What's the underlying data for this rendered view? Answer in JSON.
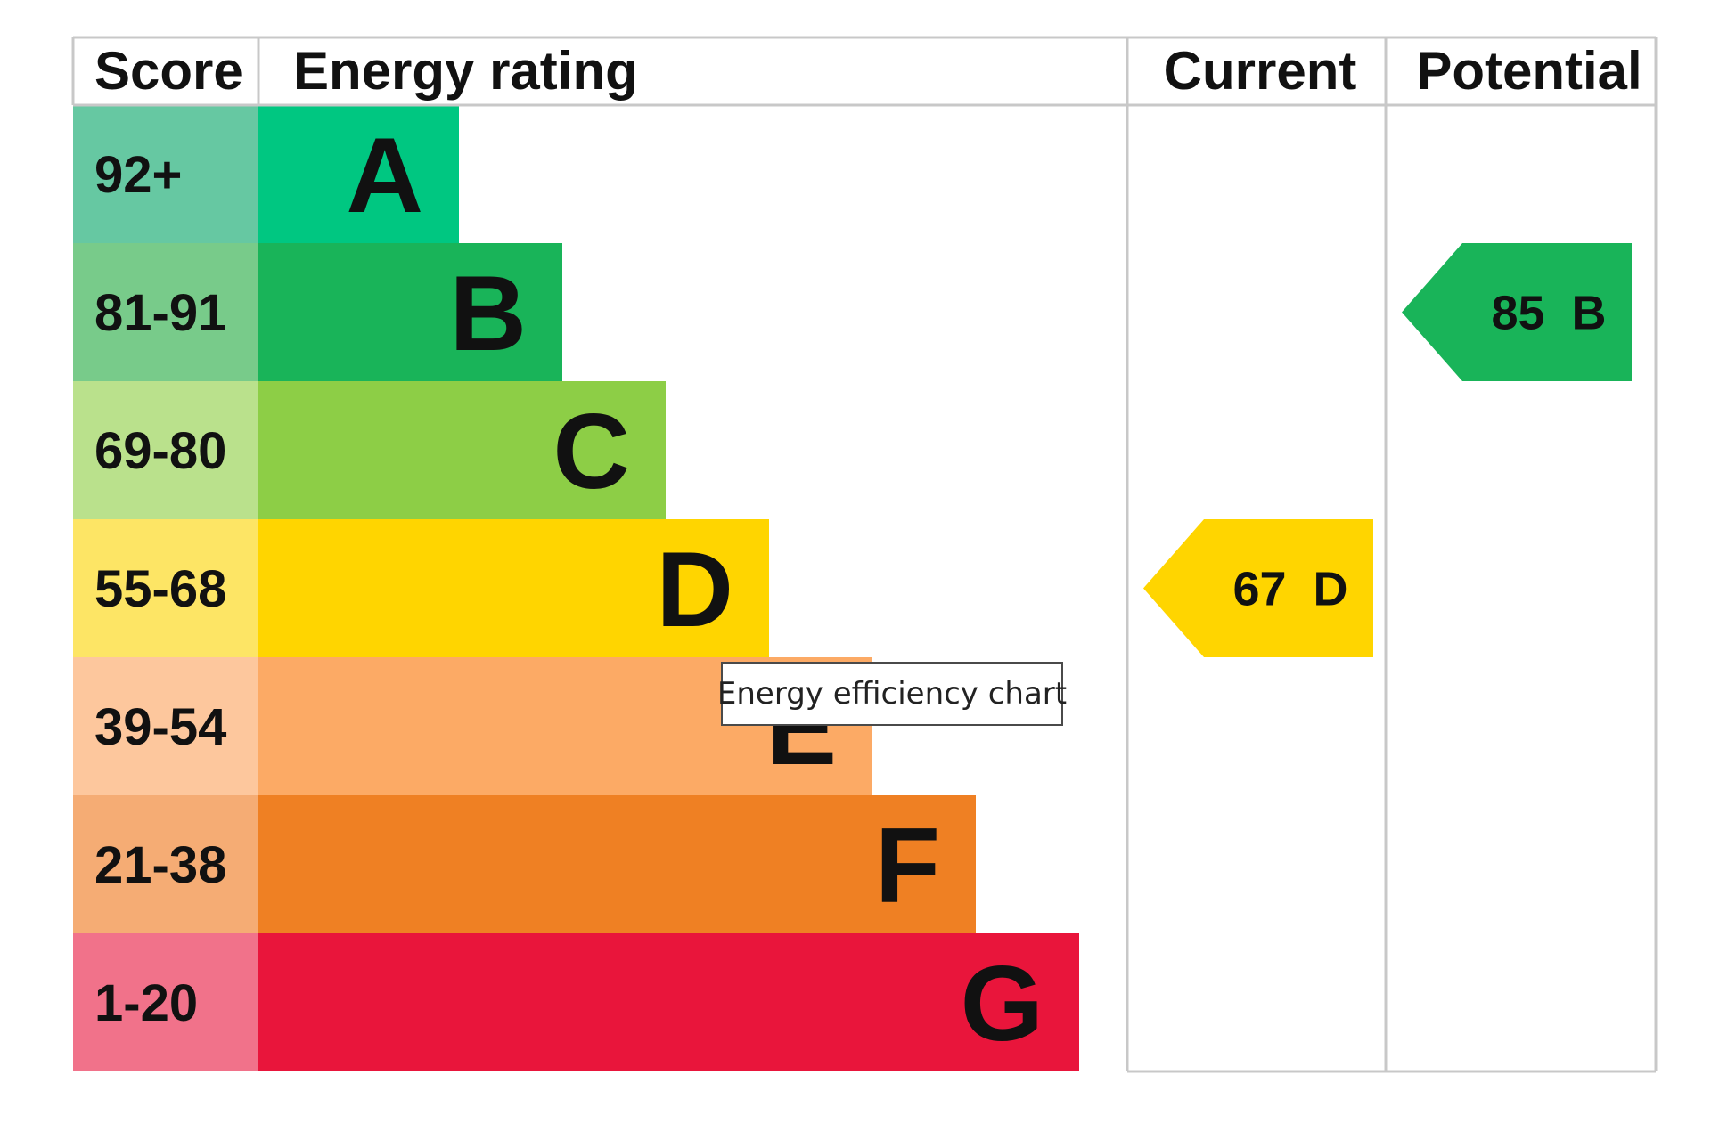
{
  "chart_data": {
    "type": "bar",
    "headers": {
      "score": "Score",
      "energy_rating": "Energy rating",
      "current": "Current",
      "potential": "Potential"
    },
    "bands": [
      {
        "letter": "A",
        "range": "92+",
        "color": "#00c781",
        "score_bg": "#66c8a2"
      },
      {
        "letter": "B",
        "range": "81-91",
        "color": "#19b459",
        "score_bg": "#78cb8a"
      },
      {
        "letter": "C",
        "range": "69-80",
        "color": "#8dce46",
        "score_bg": "#bae18c"
      },
      {
        "letter": "D",
        "range": "55-68",
        "color": "#ffd500",
        "score_bg": "#fde565"
      },
      {
        "letter": "E",
        "range": "39-54",
        "color": "#fcaa65",
        "score_bg": "#fdc79d"
      },
      {
        "letter": "F",
        "range": "21-38",
        "color": "#ef8023",
        "score_bg": "#f5ac74"
      },
      {
        "letter": "G",
        "range": "1-20",
        "color": "#e9153b",
        "score_bg": "#f1728a"
      }
    ],
    "current": {
      "value": 67,
      "band": "D",
      "label": "67  D"
    },
    "potential": {
      "value": 85,
      "band": "B",
      "label": "85  B"
    }
  },
  "tooltip": {
    "text": "Energy efficiency chart"
  }
}
